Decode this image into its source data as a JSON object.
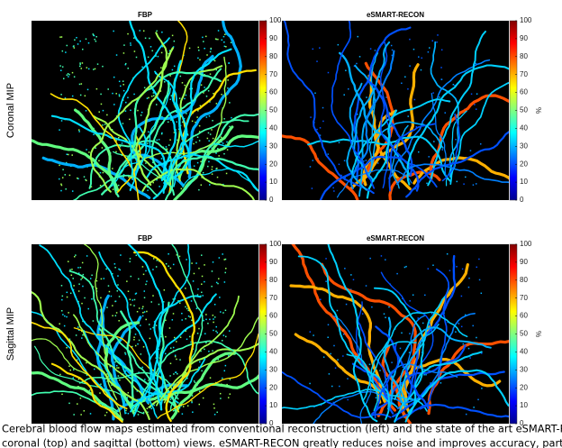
{
  "rows": [
    {
      "label": "Coronal MIP",
      "panels": [
        {
          "title": "FBP"
        },
        {
          "title": "eSMART-RECON"
        }
      ]
    },
    {
      "label": "Sagittal MIP",
      "panels": [
        {
          "title": "FBP"
        },
        {
          "title": "eSMART-RECON"
        }
      ]
    }
  ],
  "colorbar": {
    "ticks": [
      0,
      10,
      20,
      30,
      40,
      50,
      60,
      70,
      80,
      90,
      100
    ],
    "unit": "%"
  },
  "caption": [
    "Cerebral blood flow maps estimated from conventional reconstruction (left) and the state of the art eSMART-RECON method (right)",
    "coronal (top) and sagittal (bottom) views. eSMART-RECON greatly reduces noise and improves accuracy,  particularly for small blood"
  ]
}
